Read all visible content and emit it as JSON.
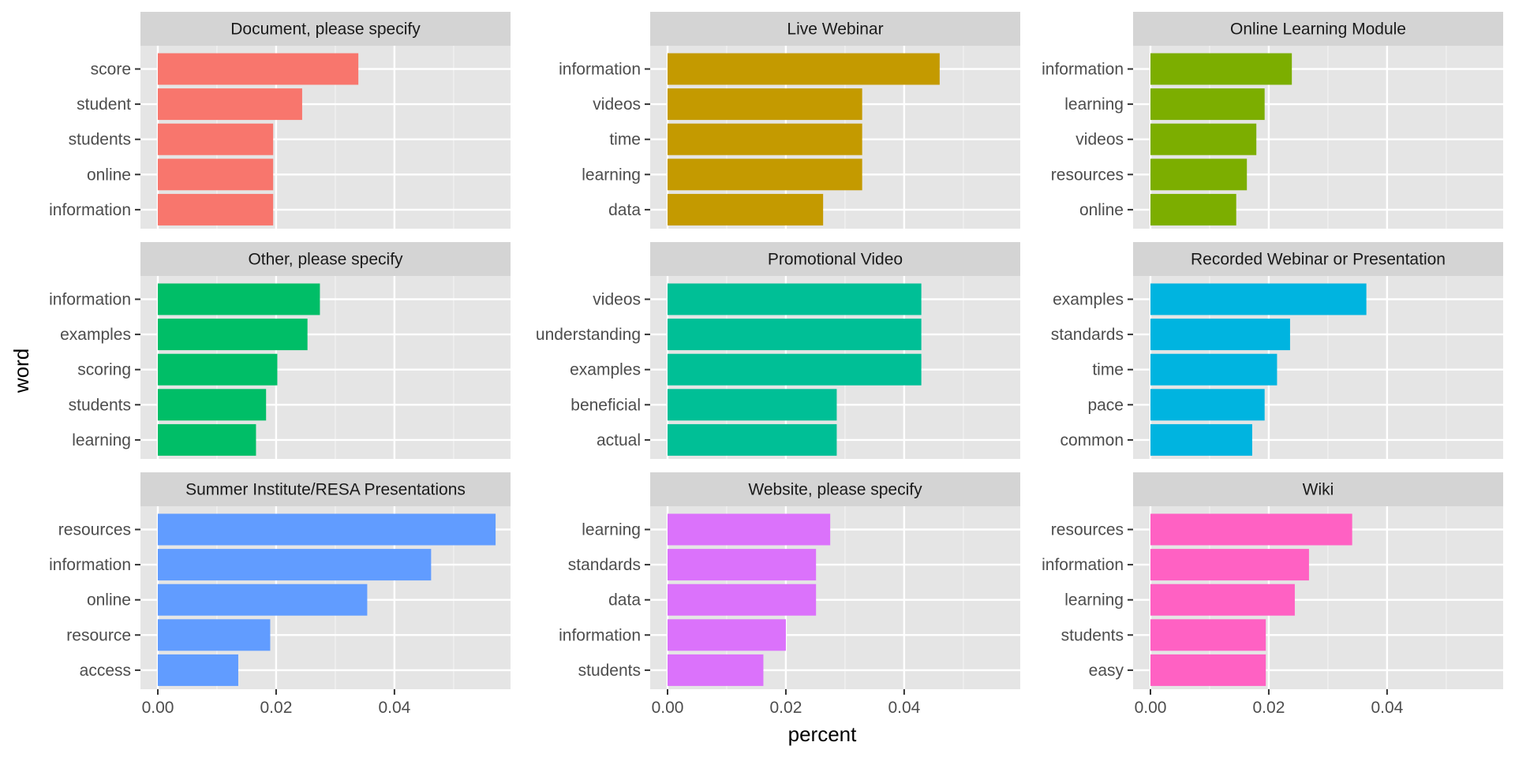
{
  "chart_data": {
    "type": "bar",
    "orientation": "horizontal",
    "faceted": true,
    "xlabel": "percent",
    "ylabel": "word",
    "xlim": [
      0,
      0.059
    ],
    "x_ticks": [
      "0.00",
      "0.02",
      "0.04"
    ],
    "x_tick_values": [
      0,
      0.02,
      0.04
    ],
    "grid": true,
    "legend": "none",
    "panels": [
      {
        "title": "Document, please specify",
        "color": "#F8766D",
        "categories": [
          "score",
          "student",
          "students",
          "online",
          "information"
        ],
        "values": [
          0.0339,
          0.0244,
          0.0195,
          0.0195,
          0.0195
        ]
      },
      {
        "title": "Live Webinar",
        "color": "#C49A00",
        "categories": [
          "information",
          "videos",
          "time",
          "learning",
          "data"
        ],
        "values": [
          0.046,
          0.0329,
          0.0329,
          0.0329,
          0.0263
        ]
      },
      {
        "title": "Online Learning Module",
        "color": "#7CAE00",
        "categories": [
          "information",
          "learning",
          "videos",
          "resources",
          "online"
        ],
        "values": [
          0.0239,
          0.0193,
          0.0179,
          0.0163,
          0.0145
        ]
      },
      {
        "title": "Other, please specify",
        "color": "#00BE67",
        "categories": [
          "information",
          "examples",
          "scoring",
          "students",
          "learning"
        ],
        "values": [
          0.0274,
          0.0253,
          0.0202,
          0.0183,
          0.0166
        ]
      },
      {
        "title": "Promotional Video",
        "color": "#00BF96",
        "categories": [
          "videos",
          "understanding",
          "examples",
          "beneficial",
          "actual"
        ],
        "values": [
          0.0429,
          0.0429,
          0.0429,
          0.0286,
          0.0286
        ]
      },
      {
        "title": "Recorded Webinar or Presentation",
        "color": "#00B4E0",
        "categories": [
          "examples",
          "standards",
          "time",
          "pace",
          "common"
        ],
        "values": [
          0.0365,
          0.0236,
          0.0214,
          0.0193,
          0.0172
        ]
      },
      {
        "title": "Summer Institute/RESA Presentations",
        "color": "#619CFF",
        "categories": [
          "resources",
          "information",
          "online",
          "resource",
          "access"
        ],
        "values": [
          0.0571,
          0.0462,
          0.0354,
          0.019,
          0.0136
        ]
      },
      {
        "title": "Website, please specify",
        "color": "#DB72FB",
        "categories": [
          "learning",
          "standards",
          "data",
          "information",
          "students"
        ],
        "values": [
          0.0275,
          0.0251,
          0.0251,
          0.02,
          0.0162
        ]
      },
      {
        "title": "Wiki",
        "color": "#FF61C3",
        "categories": [
          "resources",
          "information",
          "learning",
          "students",
          "easy"
        ],
        "values": [
          0.0341,
          0.0268,
          0.0244,
          0.0195,
          0.0195
        ]
      }
    ]
  },
  "colors": {
    "panel_bg": "#E5E5E5",
    "strip_bg": "#D4D4D4",
    "grid_major": "#FFFFFF",
    "grid_minor": "#F2F2F2",
    "tick": "#333333"
  }
}
